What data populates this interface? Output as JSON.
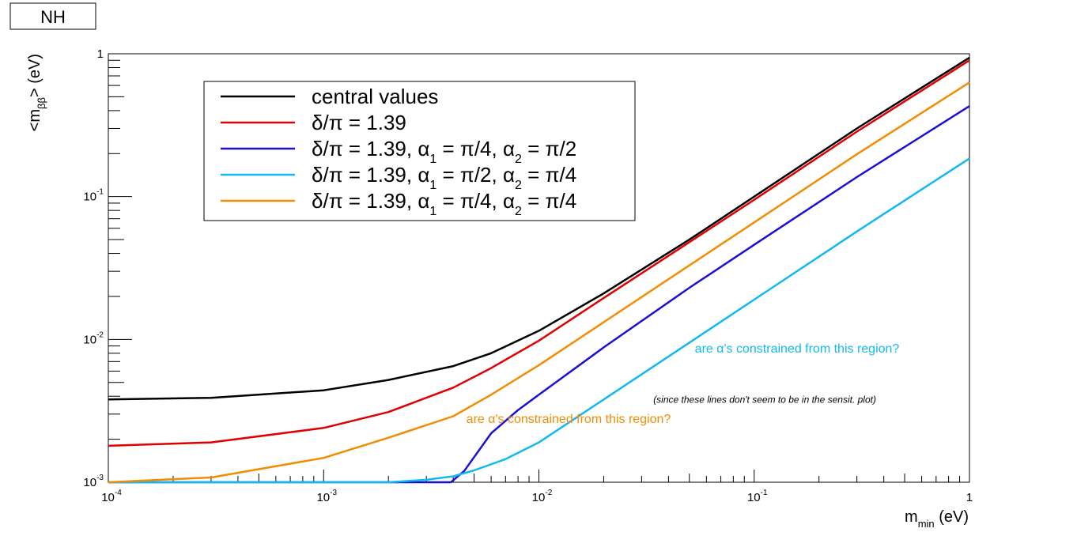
{
  "corner_label": "NH",
  "chart_data": {
    "type": "line",
    "xlabel": {
      "main": "m",
      "sub": "min",
      "unit": " (eV)"
    },
    "ylabel": {
      "lt": "<m",
      "sub": "ββ",
      "gt": ">",
      "unit": " (eV)"
    },
    "xscale": "log",
    "yscale": "log",
    "xlim": [
      0.0001,
      1
    ],
    "ylim": [
      0.001,
      1
    ],
    "x_ticks": [
      {
        "value": 0.0001,
        "base": "10",
        "exp": "-4"
      },
      {
        "value": 0.001,
        "base": "10",
        "exp": "-3"
      },
      {
        "value": 0.01,
        "base": "10",
        "exp": "-2"
      },
      {
        "value": 0.1,
        "base": "10",
        "exp": "-1"
      },
      {
        "value": 1,
        "base": "1",
        "exp": ""
      }
    ],
    "y_ticks": [
      {
        "value": 0.001,
        "base": "10",
        "exp": "-3"
      },
      {
        "value": 0.01,
        "base": "10",
        "exp": "-2"
      },
      {
        "value": 0.1,
        "base": "10",
        "exp": "-1"
      },
      {
        "value": 1,
        "base": "1",
        "exp": ""
      }
    ],
    "grid": false,
    "legend_position": "top-left",
    "series": [
      {
        "name": "central values",
        "color": "#000000",
        "legend": [
          {
            "t": "central values"
          }
        ],
        "x": [
          0.0001,
          0.0003,
          0.001,
          0.002,
          0.004,
          0.006,
          0.01,
          0.02,
          0.05,
          0.1,
          0.3,
          1
        ],
        "y": [
          0.0038,
          0.0039,
          0.0044,
          0.0052,
          0.0065,
          0.008,
          0.0115,
          0.021,
          0.05,
          0.1,
          0.3,
          0.94
        ]
      },
      {
        "name": "δ/π = 1.39",
        "color": "#e00000",
        "legend": [
          {
            "t": "δ/π = 1.39"
          }
        ],
        "x": [
          0.0001,
          0.0003,
          0.001,
          0.002,
          0.004,
          0.006,
          0.01,
          0.02,
          0.05,
          0.1,
          0.3,
          1
        ],
        "y": [
          0.0018,
          0.0019,
          0.0024,
          0.0031,
          0.0046,
          0.0063,
          0.0098,
          0.0195,
          0.048,
          0.095,
          0.285,
          0.9
        ]
      },
      {
        "name": "δ/π = 1.39, α1 = π/4, α2 = π/2",
        "color": "#1a0fd6",
        "legend": [
          {
            "t": "δ/π = 1.39, α"
          },
          {
            "t": "1",
            "sub": true
          },
          {
            "t": " = π/4, α"
          },
          {
            "t": "2",
            "sub": true
          },
          {
            "t": " = π/2"
          }
        ],
        "x": [
          0.0001,
          0.001,
          0.0039,
          0.0045,
          0.006,
          0.008,
          0.01,
          0.02,
          0.05,
          0.1,
          0.3,
          1
        ],
        "y": [
          0.001,
          0.001,
          0.001,
          0.0012,
          0.0022,
          0.0032,
          0.0041,
          0.0088,
          0.023,
          0.046,
          0.137,
          0.43
        ]
      },
      {
        "name": "δ/π = 1.39, α1 = π/2, α2 = π/4",
        "color": "#11b9f0",
        "legend": [
          {
            "t": "δ/π = 1.39, α"
          },
          {
            "t": "1",
            "sub": true
          },
          {
            "t": " = π/2, α"
          },
          {
            "t": "2",
            "sub": true
          },
          {
            "t": " = π/4"
          }
        ],
        "x": [
          0.0001,
          0.001,
          0.002,
          0.003,
          0.004,
          0.005,
          0.007,
          0.01,
          0.02,
          0.05,
          0.1,
          0.3,
          1
        ],
        "y": [
          0.001,
          0.001,
          0.001,
          0.00104,
          0.0011,
          0.00121,
          0.00145,
          0.0019,
          0.0038,
          0.0095,
          0.019,
          0.057,
          0.185
        ]
      },
      {
        "name": "δ/π = 1.39, α1 = π/4, α2 = π/4",
        "color": "#f28c00",
        "legend": [
          {
            "t": "δ/π = 1.39, α"
          },
          {
            "t": "1",
            "sub": true
          },
          {
            "t": " = π/4, α"
          },
          {
            "t": "2",
            "sub": true
          },
          {
            "t": " = π/4"
          }
        ],
        "x": [
          0.0001,
          0.0003,
          0.001,
          0.002,
          0.004,
          0.006,
          0.01,
          0.02,
          0.05,
          0.1,
          0.3,
          1
        ],
        "y": [
          0.001,
          0.00108,
          0.00148,
          0.00205,
          0.0029,
          0.0041,
          0.0066,
          0.0132,
          0.033,
          0.066,
          0.198,
          0.63
        ]
      }
    ],
    "annotations": [
      {
        "text": "are α's constrained from this region?",
        "color": "#11b9f0",
        "x": 0.053,
        "y": 0.0081,
        "size": 16,
        "italic": false
      },
      {
        "text": "(since these lines don't seem to be in the sensit. plot)",
        "color": "#000000",
        "x": 0.034,
        "y": 0.0036,
        "size": 12,
        "italic": true
      },
      {
        "text": "are α's constrained from this region?",
        "color": "#f28c00",
        "x": 0.0046,
        "y": 0.0026,
        "size": 16,
        "italic": false
      }
    ]
  }
}
